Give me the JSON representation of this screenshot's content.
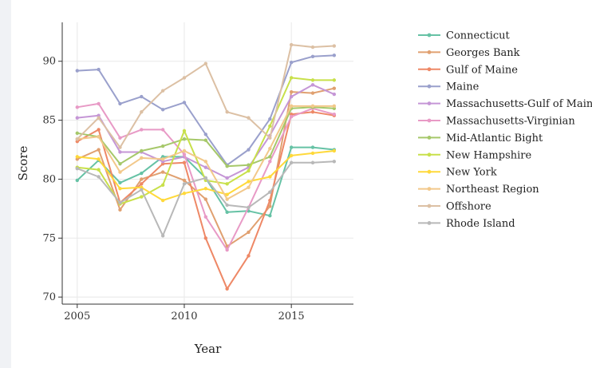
{
  "chart_data": {
    "type": "line",
    "title": "",
    "xlabel": "Year",
    "ylabel": "Score",
    "xlim": [
      2004.3,
      2017.9
    ],
    "ylim": [
      69.4,
      93.3
    ],
    "xticks": [
      2005,
      2010,
      2015
    ],
    "yticks": [
      70,
      75,
      80,
      85,
      90
    ],
    "grid": true,
    "legend_position": "right",
    "x": [
      2005,
      2006,
      2007,
      2008,
      2009,
      2010,
      2011,
      2012,
      2013,
      2014,
      2015,
      2016,
      2017
    ],
    "series": [
      {
        "name": "Connecticut",
        "color": "#66c2a5",
        "values": [
          79.9,
          81.6,
          79.7,
          80.5,
          81.9,
          81.9,
          80.1,
          77.2,
          77.3,
          76.9,
          82.7,
          82.7,
          82.5
        ]
      },
      {
        "name": "Georges Bank",
        "color": "#e0a070",
        "values": [
          81.7,
          82.5,
          77.4,
          80.0,
          80.6,
          79.9,
          78.3,
          74.3,
          75.5,
          77.7,
          87.4,
          87.3,
          87.7
        ]
      },
      {
        "name": "Gulf of Maine",
        "color": "#ee8866",
        "values": [
          83.2,
          84.2,
          78.0,
          79.6,
          81.3,
          81.4,
          75.0,
          70.7,
          73.5,
          78.2,
          85.5,
          85.7,
          85.4
        ]
      },
      {
        "name": "Maine",
        "color": "#9aa0cc",
        "values": [
          89.2,
          89.3,
          86.4,
          87.0,
          85.9,
          86.5,
          83.8,
          81.2,
          82.5,
          85.1,
          89.9,
          90.4,
          90.5
        ]
      },
      {
        "name": "Massachusetts-Gulf of Maine",
        "color": "#c596d6",
        "values": [
          85.2,
          85.4,
          82.3,
          82.3,
          81.5,
          81.9,
          81.0,
          80.1,
          81.0,
          83.7,
          87.0,
          88.0,
          87.2
        ]
      },
      {
        "name": "Massachusetts-Virginian",
        "color": "#e89ac6",
        "values": [
          86.1,
          86.4,
          83.5,
          84.2,
          84.2,
          82.1,
          76.8,
          74.0,
          77.6,
          81.5,
          85.3,
          86.0,
          85.5
        ]
      },
      {
        "name": "Mid-Atlantic Bight",
        "color": "#a6c86a",
        "values": [
          83.9,
          83.6,
          81.3,
          82.4,
          82.8,
          83.4,
          83.3,
          81.1,
          81.2,
          81.9,
          86.0,
          86.1,
          86.0
        ]
      },
      {
        "name": "New Hampshire",
        "color": "#c8e04a",
        "values": [
          81.0,
          80.8,
          77.9,
          78.5,
          79.5,
          84.1,
          79.9,
          79.6,
          80.7,
          84.5,
          88.6,
          88.4,
          88.4
        ]
      },
      {
        "name": "New York",
        "color": "#ffd93a",
        "values": [
          81.9,
          81.7,
          79.2,
          79.3,
          78.2,
          78.8,
          79.2,
          78.7,
          79.8,
          80.2,
          82.0,
          82.2,
          82.4
        ]
      },
      {
        "name": "Northeast Region",
        "color": "#f2c88a",
        "values": [
          83.4,
          83.6,
          80.6,
          81.8,
          81.7,
          82.4,
          81.5,
          78.3,
          79.3,
          82.6,
          86.2,
          86.2,
          86.2
        ]
      },
      {
        "name": "Offshore",
        "color": "#dcc0a4",
        "values": [
          83.4,
          85.2,
          82.7,
          85.7,
          87.5,
          88.6,
          89.8,
          85.7,
          85.2,
          83.5,
          91.4,
          91.2,
          91.3
        ]
      },
      {
        "name": "Rhode Island",
        "color": "#b8b8b8",
        "values": [
          80.9,
          80.2,
          78.0,
          79.1,
          75.2,
          79.6,
          80.1,
          77.8,
          77.6,
          78.9,
          81.4,
          81.4,
          81.5
        ]
      }
    ]
  }
}
